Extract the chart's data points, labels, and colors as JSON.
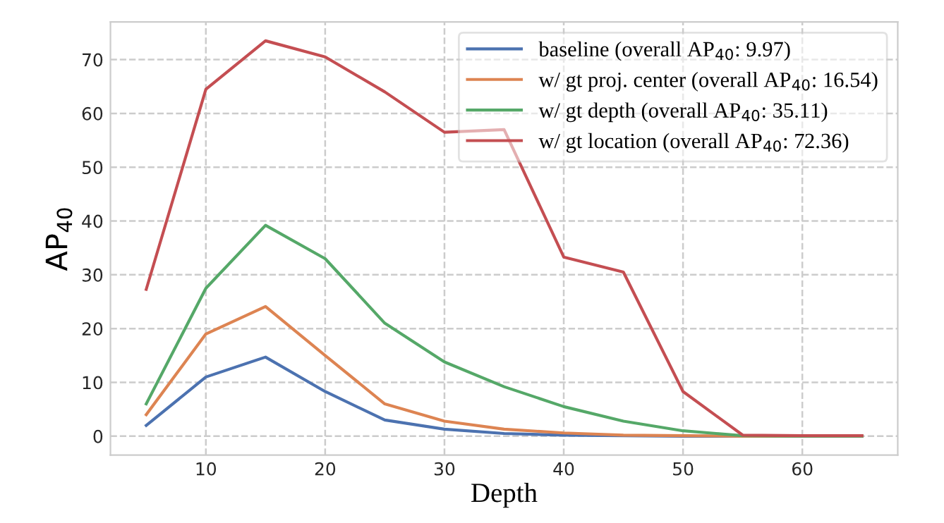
{
  "chart_data": {
    "type": "line",
    "xlabel": "Depth",
    "ylabel": "AP$_{40}$",
    "x": [
      5,
      10,
      15,
      20,
      25,
      30,
      35,
      40,
      45,
      50,
      55,
      60,
      65
    ],
    "series": [
      {
        "name": "baseline (overall AP$_{40}$: 9.97)",
        "color": "#4c72b0",
        "values": [
          2,
          11,
          14.7,
          8.3,
          3,
          1.3,
          0.5,
          0.2,
          0.1,
          0,
          0,
          null,
          null
        ]
      },
      {
        "name": "w/ gt proj. center (overall AP$_{40}$: 16.54)",
        "color": "#dd8452",
        "values": [
          4,
          19,
          24.1,
          15,
          6,
          2.8,
          1.3,
          0.6,
          0.2,
          0.1,
          0,
          0,
          0
        ]
      },
      {
        "name": "w/ gt depth (overall AP$_{40}$: 35.11)",
        "color": "#55a868",
        "values": [
          6,
          27.5,
          39.2,
          33,
          21,
          13.8,
          9.2,
          5.5,
          2.8,
          1,
          0.1,
          0,
          0
        ]
      },
      {
        "name": "w/ gt location (overall AP$_{40}$: 72.36)",
        "color": "#c44e52",
        "values": [
          27.3,
          64.5,
          73.5,
          70.5,
          64,
          56.5,
          57,
          33.3,
          30.5,
          8.3,
          0.2,
          0.1,
          0.1
        ]
      }
    ],
    "xlim": [
      2,
      68
    ],
    "xticks": [
      10,
      20,
      30,
      40,
      50,
      60
    ],
    "ylim": [
      -3.5,
      77
    ],
    "yticks": [
      0,
      10,
      20,
      30,
      40,
      50,
      60,
      70
    ],
    "grid": true,
    "legend": "top right",
    "marker": "none",
    "line_style": "solid"
  }
}
